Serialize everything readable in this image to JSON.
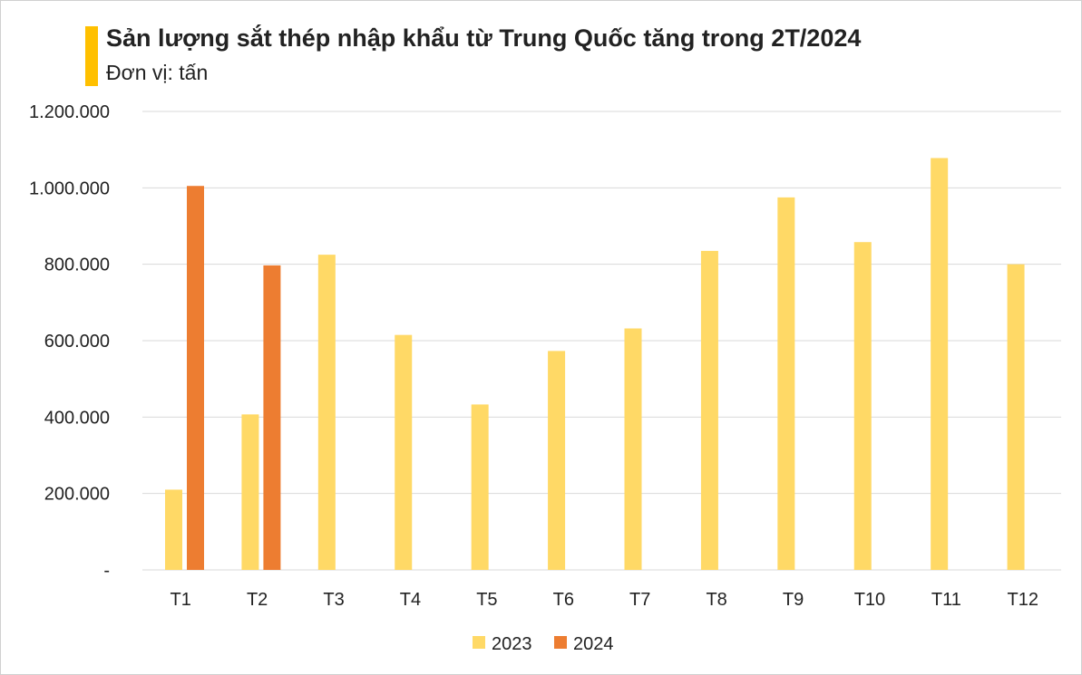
{
  "header": {
    "title": "Sản lượng sắt thép nhập khẩu từ Trung Quốc tăng trong 2T/2024",
    "subtitle": "Đơn vị: tấn"
  },
  "colors": {
    "accent": "#ffc000",
    "series_2023": "#ffd966",
    "series_2024": "#ed7d31",
    "grid": "#d9d9d9"
  },
  "chart_data": {
    "type": "bar",
    "title": "Sản lượng sắt thép nhập khẩu từ Trung Quốc tăng trong 2T/2024",
    "subtitle": "Đơn vị: tấn",
    "categories": [
      "T1",
      "T2",
      "T3",
      "T4",
      "T5",
      "T6",
      "T7",
      "T8",
      "T9",
      "T10",
      "T11",
      "T12"
    ],
    "series": [
      {
        "name": "2023",
        "color": "#ffd966",
        "values": [
          210000,
          407000,
          825000,
          615000,
          433000,
          573000,
          632000,
          835000,
          975000,
          858000,
          1078000,
          800000
        ]
      },
      {
        "name": "2024",
        "color": "#ed7d31",
        "values": [
          1005000,
          797000,
          null,
          null,
          null,
          null,
          null,
          null,
          null,
          null,
          null,
          null
        ]
      }
    ],
    "ylim": [
      0,
      1200000
    ],
    "yticks": [
      0,
      200000,
      400000,
      600000,
      800000,
      1000000,
      1200000
    ],
    "ytick_labels": [
      "-",
      "200.000",
      "400.000",
      "600.000",
      "800.000",
      "1.000.000",
      "1.200.000"
    ],
    "grid": true,
    "legend": "bottom-center"
  }
}
